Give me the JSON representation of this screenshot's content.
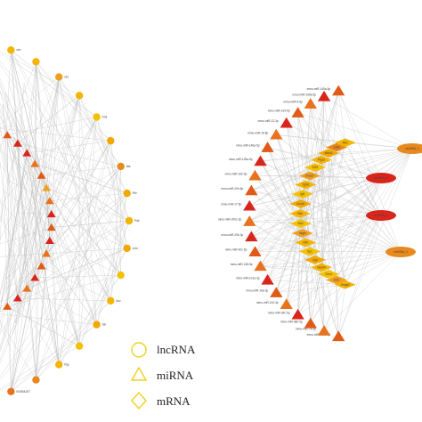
{
  "figure": {
    "legend": [
      {
        "shape": "circle",
        "label": "lncRNA"
      },
      {
        "shape": "triangle",
        "label": "miRNA"
      },
      {
        "shape": "diamond",
        "label": "mRNA"
      }
    ]
  },
  "left_network": {
    "outer_nodes": [
      {
        "shape": "circle",
        "color": "#e87722",
        "label": ""
      },
      {
        "shape": "circle",
        "color": "#f5b400",
        "label": "circ"
      },
      {
        "shape": "circle",
        "color": "#f5b400",
        "label": ""
      },
      {
        "shape": "circle",
        "color": "#f0a020",
        "label": "circ"
      },
      {
        "shape": "circle",
        "color": "#f5b400",
        "label": ""
      },
      {
        "shape": "circle",
        "color": "#f5c000",
        "label": "Kmt"
      },
      {
        "shape": "circle",
        "color": "#f2a800",
        "label": ""
      },
      {
        "shape": "circle",
        "color": "#e8891c",
        "label": "Nfs"
      },
      {
        "shape": "circle",
        "color": "#f2a800",
        "label": "Rbl"
      },
      {
        "shape": "circle",
        "color": "#f5b400",
        "label": "Pdk"
      },
      {
        "shape": "circle",
        "color": "#f2a800",
        "label": "Lmo"
      },
      {
        "shape": "circle",
        "color": "#f5c000",
        "label": ""
      },
      {
        "shape": "circle",
        "color": "#f5b400",
        "label": "Acv"
      },
      {
        "shape": "circle",
        "color": "#f2a800",
        "label": "Six"
      },
      {
        "shape": "circle",
        "color": "#f5c000",
        "label": ""
      },
      {
        "shape": "circle",
        "color": "#f5b400",
        "label": "Ppp"
      },
      {
        "shape": "circle",
        "color": "#e8891c",
        "label": ""
      },
      {
        "shape": "circle",
        "color": "#e9721c",
        "label": "ENSMUST"
      },
      {
        "shape": "circle",
        "color": "#e05a18",
        "label": ""
      }
    ],
    "inner_triangles": [
      {
        "color": "#d9261c"
      },
      {
        "color": "#e05a18"
      },
      {
        "color": "#d9261c"
      },
      {
        "color": "#d9261c"
      },
      {
        "color": "#e9721c"
      },
      {
        "color": "#e05a18"
      },
      {
        "color": "#f0a020"
      },
      {
        "color": "#e9721c"
      },
      {
        "color": "#d9261c"
      },
      {
        "color": "#e05a18"
      },
      {
        "color": "#d9261c"
      },
      {
        "color": "#e9721c"
      },
      {
        "color": "#e05a18"
      },
      {
        "color": "#d9261c"
      },
      {
        "color": "#e9721c"
      },
      {
        "color": "#d9261c"
      },
      {
        "color": "#e05a18"
      },
      {
        "color": "#d9261c"
      }
    ]
  },
  "right_network": {
    "outer_triangles": [
      {
        "label": "mmu-miR-181a-5p",
        "color": "#e05a18"
      },
      {
        "label": "mmu-miR-7a-5p",
        "color": "#e9721c"
      },
      {
        "label": "mmu-miR-382-5p",
        "color": "#e05a18"
      },
      {
        "label": "mmu-miR-34c-5p",
        "color": "#d9261c"
      },
      {
        "label": "mmu-miR-142-3p",
        "color": "#e9721c"
      },
      {
        "label": "mmu-miR-19a-3p",
        "color": "#e05a18"
      },
      {
        "label": "mmu-miR-101a-3p",
        "color": "#d9261c"
      },
      {
        "label": "mmu-miR-138-5p",
        "color": "#e9721c"
      },
      {
        "label": "mmu-miR-30c-5p",
        "color": "#e05a18"
      },
      {
        "label": "mmu-miR-29b-3p",
        "color": "#d9261c"
      },
      {
        "label": "mmu-miR-200c-3p",
        "color": "#e9721c"
      },
      {
        "label": "mmu-miR-17-5p",
        "color": "#d9261c"
      },
      {
        "label": "mmu-miR-20b-5p",
        "color": "#e05a18"
      },
      {
        "label": "mmu-miR-10b-5p",
        "color": "#e9721c"
      },
      {
        "label": "mmu-miR-125a-5p",
        "color": "#d9261c"
      },
      {
        "label": "mmu-miR-146a-5p",
        "color": "#e05a18"
      },
      {
        "label": "mmu-miR-16-5p",
        "color": "#e9721c"
      },
      {
        "label": "mmu-miR-22-3p",
        "color": "#d9261c"
      },
      {
        "label": "mmu-miR-194-5p",
        "color": "#e05a18"
      },
      {
        "label": "mmu-miR-9-5p",
        "color": "#e9721c"
      },
      {
        "label": "mmu-miR-199a-5p",
        "color": "#d9261c"
      },
      {
        "label": "mmu-miR-145a-5p",
        "color": "#e05a18"
      }
    ],
    "inner_diamonds": [
      {
        "label": "Hmga2",
        "color": "#f5b400"
      },
      {
        "label": "Zeb1",
        "color": "#f0a020"
      },
      {
        "label": "Sox4",
        "color": "#f5c000"
      },
      {
        "label": "Nedd4",
        "color": "#f5b400"
      },
      {
        "label": "Lpp",
        "color": "#f2a800"
      },
      {
        "label": "Sp1",
        "color": "#f5c000"
      },
      {
        "label": "Klf4",
        "color": "#f5b400"
      },
      {
        "label": "Vegfa",
        "color": "#f0a020"
      },
      {
        "label": "Bcl2",
        "color": "#f5c000"
      },
      {
        "label": "Pten",
        "color": "#f5b400"
      },
      {
        "label": "Ccnd1",
        "color": "#f2a800"
      },
      {
        "label": "Igf1",
        "color": "#f5c000"
      },
      {
        "label": "Tgfb2",
        "color": "#f5b400"
      },
      {
        "label": "Smad7",
        "color": "#f0a020"
      },
      {
        "label": "E2f3",
        "color": "#f5c000"
      },
      {
        "label": "Ptgs2",
        "color": "#f5b400"
      },
      {
        "label": "Mdm2",
        "color": "#f2a800"
      },
      {
        "label": "Cdk6",
        "color": "#e8891c"
      },
      {
        "label": "Rb1",
        "color": "#f5b400"
      }
    ],
    "center_ellipses": [
      {
        "label": "circRNA_1",
        "color": "#e8891c"
      },
      {
        "label": "lncRNA_2",
        "color": "#d9261c"
      },
      {
        "label": "lncRNA_3",
        "color": "#d9261c"
      },
      {
        "label": "circRNA_4",
        "color": "#e8891c"
      }
    ]
  }
}
